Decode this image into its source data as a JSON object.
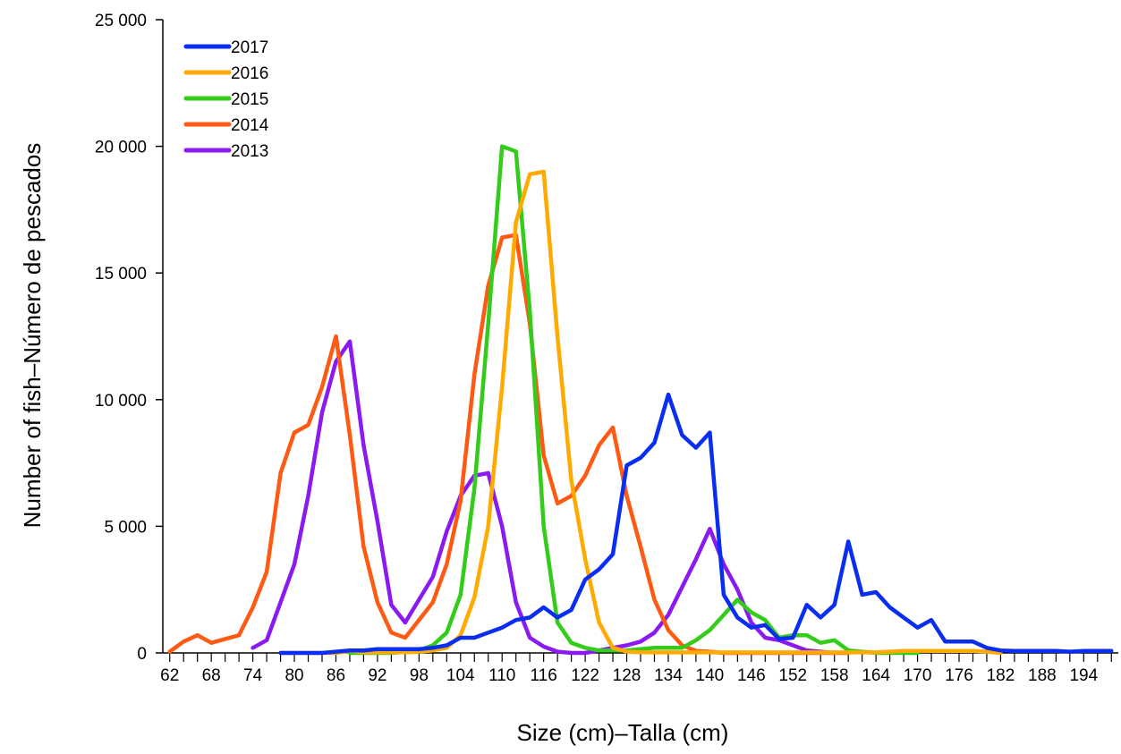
{
  "chart_data": {
    "type": "line",
    "xlabel": "Size (cm)–Talla (cm)",
    "ylabel": "Number of fish–Número de pescados",
    "xlim": [
      61,
      199
    ],
    "ylim": [
      0,
      25000
    ],
    "x_tick_labels": [
      "62",
      "68",
      "74",
      "80",
      "86",
      "92",
      "98",
      "104",
      "110",
      "116",
      "122",
      "128",
      "134",
      "140",
      "146",
      "152",
      "158",
      "164",
      "170",
      "176",
      "182",
      "188",
      "194"
    ],
    "y_ticks": [
      0,
      5000,
      10000,
      15000,
      20000,
      25000
    ],
    "y_tick_labels": [
      "0",
      "5 000",
      "10 000",
      "15 000",
      "20 000",
      "25 000"
    ],
    "legend_position": "top-left",
    "grid": false,
    "series": [
      {
        "name": "2017",
        "color": "#0a2ef0",
        "x": [
          78,
          80,
          82,
          84,
          86,
          88,
          90,
          92,
          94,
          96,
          98,
          100,
          102,
          104,
          106,
          108,
          110,
          112,
          114,
          116,
          118,
          120,
          122,
          124,
          126,
          128,
          130,
          132,
          134,
          136,
          138,
          140,
          142,
          144,
          146,
          148,
          150,
          152,
          154,
          156,
          158,
          160,
          162,
          164,
          166,
          168,
          170,
          172,
          174,
          176,
          178,
          180,
          182,
          184,
          186,
          188,
          190,
          192,
          194,
          196,
          198
        ],
        "values": [
          0,
          0,
          0,
          0,
          50,
          100,
          100,
          150,
          150,
          150,
          150,
          200,
          300,
          600,
          600,
          800,
          1000,
          1300,
          1400,
          1800,
          1400,
          1700,
          2900,
          3300,
          3900,
          7400,
          7700,
          8300,
          10200,
          8600,
          8100,
          8700,
          2300,
          1400,
          1000,
          1100,
          550,
          600,
          1900,
          1400,
          1900,
          4400,
          2300,
          2400,
          1800,
          1400,
          1000,
          1300,
          450,
          450,
          450,
          200,
          100,
          80,
          80,
          80,
          80,
          50,
          80,
          80,
          80
        ]
      },
      {
        "name": "2016",
        "color": "#ffaa00",
        "x": [
          78,
          80,
          82,
          84,
          86,
          88,
          90,
          92,
          94,
          96,
          98,
          100,
          102,
          104,
          106,
          108,
          110,
          112,
          114,
          116,
          118,
          120,
          122,
          124,
          126,
          128,
          130,
          132,
          134,
          136,
          138,
          140,
          142,
          144,
          146,
          148,
          150,
          152,
          154,
          156,
          158,
          160,
          162,
          164,
          166,
          168,
          170,
          172,
          174,
          176,
          178,
          180,
          182
        ],
        "values": [
          0,
          0,
          0,
          0,
          0,
          80,
          20,
          20,
          30,
          30,
          50,
          100,
          200,
          700,
          2200,
          5000,
          10500,
          17000,
          18900,
          19000,
          12500,
          6800,
          3700,
          1200,
          200,
          50,
          30,
          20,
          20,
          20,
          20,
          20,
          20,
          20,
          20,
          20,
          20,
          20,
          20,
          20,
          20,
          20,
          20,
          20,
          50,
          80,
          80,
          80,
          80,
          80,
          80,
          50,
          0
        ]
      },
      {
        "name": "2015",
        "color": "#33cc1a",
        "x": [
          88,
          90,
          92,
          94,
          96,
          98,
          100,
          102,
          104,
          106,
          108,
          110,
          112,
          114,
          116,
          118,
          120,
          122,
          124,
          126,
          128,
          130,
          132,
          134,
          136,
          138,
          140,
          142,
          144,
          146,
          148,
          150,
          152,
          154,
          156,
          158,
          160,
          162,
          164,
          166,
          168,
          170
        ],
        "values": [
          0,
          0,
          0,
          0,
          50,
          100,
          300,
          800,
          2300,
          6500,
          13000,
          20000,
          19800,
          13500,
          5000,
          1200,
          400,
          200,
          100,
          100,
          100,
          150,
          200,
          200,
          200,
          500,
          900,
          1500,
          2100,
          1600,
          1300,
          600,
          700,
          700,
          400,
          500,
          100,
          50,
          0,
          0,
          0,
          0
        ]
      },
      {
        "name": "2014",
        "color": "#ff5a14",
        "x": [
          62,
          64,
          66,
          68,
          70,
          72,
          74,
          76,
          78,
          80,
          82,
          84,
          86,
          88,
          90,
          92,
          94,
          96,
          98,
          100,
          102,
          104,
          106,
          108,
          110,
          112,
          114,
          116,
          118,
          120,
          122,
          124,
          126,
          128,
          130,
          132,
          134,
          136,
          138,
          140,
          142,
          144,
          146,
          148,
          150,
          152,
          154,
          156,
          158,
          160
        ],
        "values": [
          50,
          450,
          700,
          400,
          550,
          700,
          1800,
          3200,
          7100,
          8700,
          9000,
          10500,
          12500,
          8600,
          4200,
          2000,
          800,
          600,
          1300,
          2000,
          3500,
          6000,
          11000,
          14500,
          16400,
          16500,
          13000,
          7800,
          5900,
          6200,
          7000,
          8200,
          8900,
          6200,
          4200,
          2100,
          900,
          300,
          80,
          50,
          0,
          0,
          0,
          0,
          0,
          0,
          0,
          0,
          0,
          0
        ]
      },
      {
        "name": "2013",
        "color": "#8a1af0",
        "x": [
          74,
          76,
          78,
          80,
          82,
          84,
          86,
          88,
          90,
          92,
          94,
          96,
          98,
          100,
          102,
          104,
          106,
          108,
          110,
          112,
          114,
          116,
          118,
          120,
          122,
          124,
          126,
          128,
          130,
          132,
          134,
          136,
          138,
          140,
          142,
          144,
          146,
          148,
          150,
          152,
          154,
          156,
          158
        ],
        "values": [
          200,
          500,
          2000,
          3500,
          6200,
          9500,
          11500,
          12300,
          8200,
          5200,
          1900,
          1200,
          2100,
          3000,
          4800,
          6200,
          7000,
          7100,
          5000,
          2000,
          600,
          250,
          50,
          0,
          0,
          100,
          200,
          300,
          450,
          800,
          1500,
          2600,
          3700,
          4900,
          3500,
          2500,
          1200,
          600,
          500,
          300,
          100,
          50,
          0
        ]
      }
    ]
  }
}
